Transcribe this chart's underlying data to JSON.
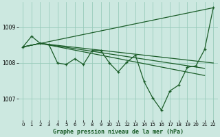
{
  "background_color": "#cce8e0",
  "grid_color": "#99ccbb",
  "line_color": "#1a5c28",
  "xlabel": "Graphe pression niveau de la mer (hPa)",
  "xlim": [
    -0.5,
    22.5
  ],
  "ylim": [
    1006.4,
    1009.7
  ],
  "yticks": [
    1007,
    1008,
    1009
  ],
  "xticks": [
    0,
    1,
    2,
    3,
    4,
    5,
    6,
    7,
    8,
    9,
    10,
    11,
    12,
    13,
    14,
    15,
    16,
    17,
    18,
    19,
    20,
    21,
    22
  ],
  "line1_x": [
    0,
    22
  ],
  "line1_y": [
    1008.45,
    1009.55
  ],
  "line2_x": [
    0,
    2,
    22
  ],
  "line2_y": [
    1008.45,
    1008.55,
    1008.0
  ],
  "line3_x": [
    0,
    2,
    21
  ],
  "line3_y": [
    1008.45,
    1008.55,
    1007.85
  ],
  "line4_x": [
    0,
    2,
    21
  ],
  "line4_y": [
    1008.45,
    1008.55,
    1007.65
  ],
  "jagged_x": [
    0,
    1,
    2,
    3,
    4,
    5,
    6,
    7,
    8,
    9,
    10,
    11,
    12,
    13,
    14,
    15,
    16,
    17,
    18,
    19,
    20,
    21,
    22
  ],
  "jagged_y": [
    1008.45,
    1008.75,
    1008.55,
    1008.52,
    1008.0,
    1007.96,
    1008.12,
    1007.96,
    1008.35,
    1008.35,
    1008.0,
    1007.75,
    1008.02,
    1008.22,
    1007.48,
    1007.02,
    1006.68,
    1007.22,
    1007.38,
    1007.88,
    1007.92,
    1008.38,
    1009.55
  ]
}
